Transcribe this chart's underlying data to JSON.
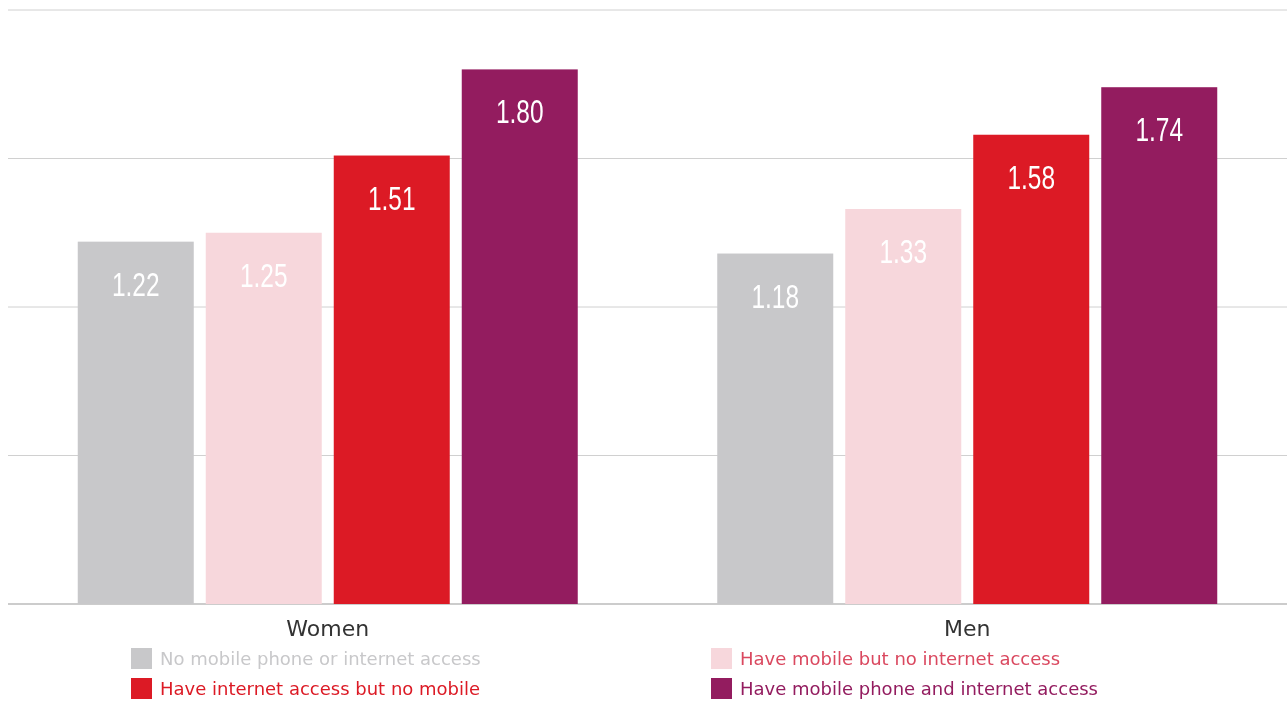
{
  "chart_data": {
    "type": "bar",
    "categories": [
      "Women",
      "Men"
    ],
    "series": [
      {
        "name": "No mobile phone or internet access",
        "color": "#c8c8ca",
        "values": [
          1.22,
          1.18
        ],
        "value_labels": [
          "1.22",
          "1.18"
        ]
      },
      {
        "name": "Have mobile but no internet access",
        "color": "#f7d7dc",
        "values": [
          1.25,
          1.33
        ],
        "value_labels": [
          "1.25",
          "1.33"
        ]
      },
      {
        "name": "Have internet access but no mobile",
        "color": "#dc1a25",
        "values": [
          1.51,
          1.58
        ],
        "value_labels": [
          "1.51",
          "1.58"
        ]
      },
      {
        "name": "Have mobile phone and internet access",
        "color": "#931c5f",
        "values": [
          1.8,
          1.74
        ],
        "value_labels": [
          "1.80",
          "1.74"
        ]
      }
    ],
    "ylim": [
      0,
      2
    ],
    "yticks": [
      {
        "value": 0,
        "label": null
      },
      {
        "value": 0.5,
        "label": null
      },
      {
        "value": 1,
        "label": null
      },
      {
        "value": 1.5,
        "label": null
      },
      {
        "value": 2,
        "label": null
      }
    ],
    "tick_labels": "x",
    "grid": "y",
    "legend": "bottom"
  }
}
